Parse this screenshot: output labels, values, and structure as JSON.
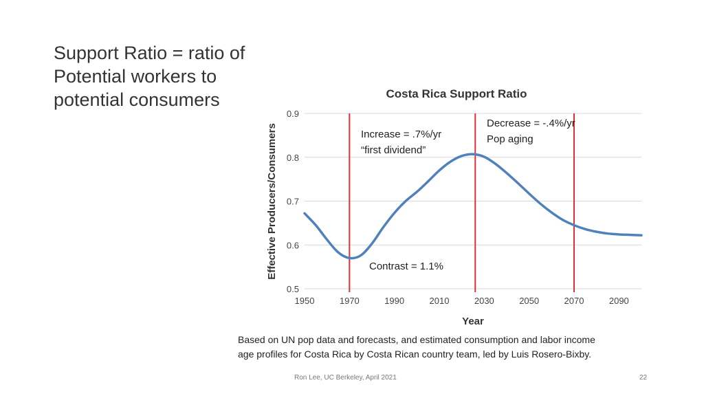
{
  "slide": {
    "title": "Support Ratio = ratio of Potential workers to potential consumers",
    "caption_lines": [
      "Based on UN pop data and forecasts, and estimated consumption and labor income",
      "age profiles for Costa Rica by Costa Rican country team, led by Luis Rosero-Bixby."
    ],
    "footer": "Ron Lee, UC Berkeley, April 2021",
    "page_number": "22"
  },
  "chart_data": {
    "type": "line",
    "title": "Costa Rica Support Ratio",
    "xlabel": "Year",
    "ylabel": "Effective Producers/Consumers",
    "xlim": [
      1950,
      2100
    ],
    "ylim": [
      0.5,
      0.9
    ],
    "x_ticks": [
      1950,
      1970,
      1990,
      2010,
      2030,
      2050,
      2070,
      2090
    ],
    "y_ticks": [
      "0.5",
      "0.6",
      "0.7",
      "0.8",
      "0.9"
    ],
    "grid": true,
    "series_color": "#4f81bd",
    "marker_color": "#e03030",
    "series": [
      {
        "x": [
          1950,
          1955,
          1960,
          1965,
          1970,
          1975,
          1980,
          1985,
          1990,
          1995,
          2000,
          2005,
          2010,
          2015,
          2020,
          2025,
          2030,
          2035,
          2040,
          2045,
          2050,
          2055,
          2060,
          2065,
          2070,
          2075,
          2080,
          2085,
          2090,
          2095,
          2100
        ],
        "y": [
          0.672,
          0.645,
          0.612,
          0.583,
          0.57,
          0.576,
          0.603,
          0.64,
          0.673,
          0.7,
          0.721,
          0.745,
          0.77,
          0.79,
          0.803,
          0.807,
          0.801,
          0.785,
          0.764,
          0.741,
          0.717,
          0.694,
          0.674,
          0.657,
          0.645,
          0.636,
          0.63,
          0.626,
          0.624,
          0.623,
          0.622
        ]
      }
    ],
    "vertical_markers": [
      1970,
      2026,
      2070
    ],
    "annotations": [
      {
        "id": "increase",
        "lines": [
          "Increase = .7%/yr",
          "“first dividend”"
        ]
      },
      {
        "id": "decrease",
        "lines": [
          "Decrease = -.4%/yr",
          "Pop aging"
        ]
      },
      {
        "id": "contrast",
        "lines": [
          "Contrast = 1.1%"
        ]
      }
    ]
  }
}
